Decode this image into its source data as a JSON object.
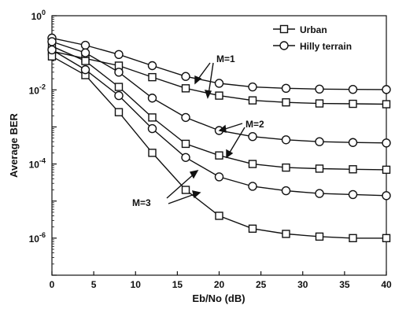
{
  "chart_data": {
    "type": "line",
    "xlabel": "Eb/No (dB)",
    "ylabel": "Average BER",
    "xlim": [
      0,
      40
    ],
    "ylim_log10": [
      -7,
      0
    ],
    "yscale": "log",
    "x_ticks": [
      0,
      5,
      10,
      15,
      20,
      25,
      30,
      35,
      40
    ],
    "y_ticks": [
      {
        "base": "10",
        "exp": "0",
        "log10": 0
      },
      {
        "base": "10",
        "exp": "-2",
        "log10": -2
      },
      {
        "base": "10",
        "exp": "-4",
        "log10": -4
      },
      {
        "base": "10",
        "exp": "-6",
        "log10": -6
      }
    ],
    "grid": false,
    "legend_position": "top-right",
    "legend": [
      {
        "label": "Urban",
        "marker": "square"
      },
      {
        "label": "Hilly terrain",
        "marker": "circle"
      }
    ],
    "annotations": [
      "M=1",
      "M=2",
      "M=3"
    ],
    "x": [
      0,
      4,
      8,
      12,
      16,
      20,
      24,
      28,
      32,
      36,
      40
    ],
    "series": [
      {
        "environment": "Urban",
        "M": 1,
        "marker": "square",
        "values": [
          0.11,
          0.07,
          0.045,
          0.022,
          0.011,
          0.007,
          0.0052,
          0.0046,
          0.0043,
          0.0042,
          0.0041
        ]
      },
      {
        "environment": "Hilly terrain",
        "M": 1,
        "marker": "circle",
        "values": [
          0.25,
          0.16,
          0.09,
          0.045,
          0.023,
          0.015,
          0.012,
          0.011,
          0.0105,
          0.0103,
          0.0102
        ]
      },
      {
        "environment": "Urban",
        "M": 2,
        "marker": "square",
        "values": [
          0.15,
          0.06,
          0.012,
          0.0018,
          0.00035,
          0.00017,
          0.0001,
          8e-05,
          7.5e-05,
          7.2e-05,
          7e-05
        ]
      },
      {
        "environment": "Hilly terrain",
        "M": 2,
        "marker": "circle",
        "values": [
          0.2,
          0.1,
          0.03,
          0.006,
          0.0018,
          0.0008,
          0.00055,
          0.00045,
          0.0004,
          0.00038,
          0.00037
        ]
      },
      {
        "environment": "Urban",
        "M": 3,
        "marker": "square",
        "values": [
          0.08,
          0.025,
          0.0025,
          0.0002,
          2e-05,
          4e-06,
          1.8e-06,
          1.3e-06,
          1.1e-06,
          1e-06,
          1e-06
        ]
      },
      {
        "environment": "Hilly terrain",
        "M": 3,
        "marker": "circle",
        "values": [
          0.12,
          0.035,
          0.007,
          0.0009,
          0.00015,
          4.5e-05,
          2.5e-05,
          1.9e-05,
          1.6e-05,
          1.5e-05,
          1.4e-05
        ]
      }
    ]
  }
}
